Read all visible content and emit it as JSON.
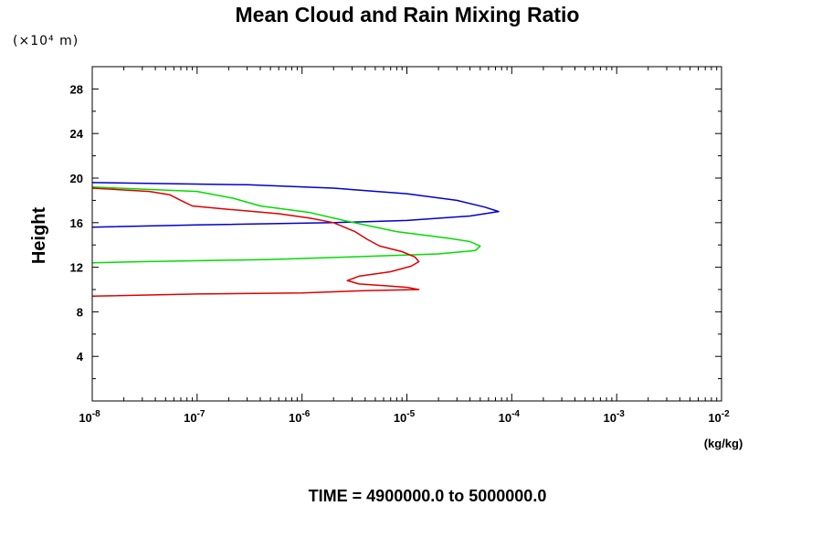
{
  "chart_data": {
    "type": "line",
    "title": "Mean Cloud and Rain Mixing Ratio",
    "y_unit_label": "(×10⁴ m)",
    "ylabel": "Height",
    "xlabel": "(kg/kg)",
    "x_scale": "log",
    "xlim": [
      1e-08,
      0.01
    ],
    "ylim": [
      0,
      30
    ],
    "y_ticks": [
      "4",
      "8",
      "12",
      "16",
      "20",
      "24",
      "28"
    ],
    "x_ticks": [
      {
        "base": "10",
        "exp": "-8"
      },
      {
        "base": "10",
        "exp": "-7"
      },
      {
        "base": "10",
        "exp": "-6"
      },
      {
        "base": "10",
        "exp": "-5"
      },
      {
        "base": "10",
        "exp": "-4"
      },
      {
        "base": "10",
        "exp": "-3"
      },
      {
        "base": "10",
        "exp": "-2"
      }
    ],
    "footer": "TIME = 4900000.0 to 5000000.0",
    "series": [
      {
        "color": "#0000cc",
        "points": [
          [
            1e-08,
            19.6
          ],
          [
            3e-07,
            19.4
          ],
          [
            2e-06,
            19.1
          ],
          [
            1e-05,
            18.6
          ],
          [
            3e-05,
            18.0
          ],
          [
            5.5e-05,
            17.4
          ],
          [
            7.5e-05,
            17.0
          ],
          [
            4e-05,
            16.6
          ],
          [
            1e-05,
            16.2
          ],
          [
            2e-06,
            16.0
          ],
          [
            1e-07,
            15.8
          ],
          [
            1e-08,
            15.6
          ]
        ]
      },
      {
        "color": "#00dd00",
        "points": [
          [
            1e-08,
            19.2
          ],
          [
            1e-07,
            18.8
          ],
          [
            2.2e-07,
            18.2
          ],
          [
            4e-07,
            17.5
          ],
          [
            1.2e-06,
            16.9
          ],
          [
            2.5e-06,
            16.2
          ],
          [
            8e-06,
            15.2
          ],
          [
            2.5e-05,
            14.6
          ],
          [
            4e-05,
            14.3
          ],
          [
            5e-05,
            13.9
          ],
          [
            4.5e-05,
            13.5
          ],
          [
            2e-05,
            13.2
          ],
          [
            5e-06,
            13.0
          ],
          [
            5e-07,
            12.7
          ],
          [
            3e-08,
            12.5
          ],
          [
            1e-08,
            12.4
          ]
        ]
      },
      {
        "color": "#dd0000",
        "points": [
          [
            1e-08,
            19.1
          ],
          [
            3.5e-08,
            18.8
          ],
          [
            5.5e-08,
            18.5
          ],
          [
            7e-08,
            18.0
          ],
          [
            9e-08,
            17.5
          ],
          [
            2e-07,
            17.2
          ],
          [
            6e-07,
            16.8
          ],
          [
            1.2e-06,
            16.4
          ],
          [
            2e-06,
            16.0
          ],
          [
            3.2e-06,
            15.2
          ],
          [
            4.2e-06,
            14.5
          ],
          [
            5.5e-06,
            13.9
          ],
          [
            9e-06,
            13.4
          ],
          [
            1.2e-05,
            12.9
          ],
          [
            1.3e-05,
            12.5
          ],
          [
            1.1e-05,
            12.1
          ],
          [
            7e-06,
            11.6
          ],
          [
            3.5e-06,
            11.2
          ],
          [
            2.7e-06,
            10.8
          ],
          [
            3.5e-06,
            10.5
          ],
          [
            7e-06,
            10.3
          ],
          [
            1e-05,
            10.2
          ],
          [
            1.3e-05,
            10.0
          ],
          [
            4e-06,
            9.9
          ],
          [
            1e-06,
            9.7
          ],
          [
            1e-07,
            9.6
          ],
          [
            1e-08,
            9.4
          ]
        ]
      }
    ]
  }
}
